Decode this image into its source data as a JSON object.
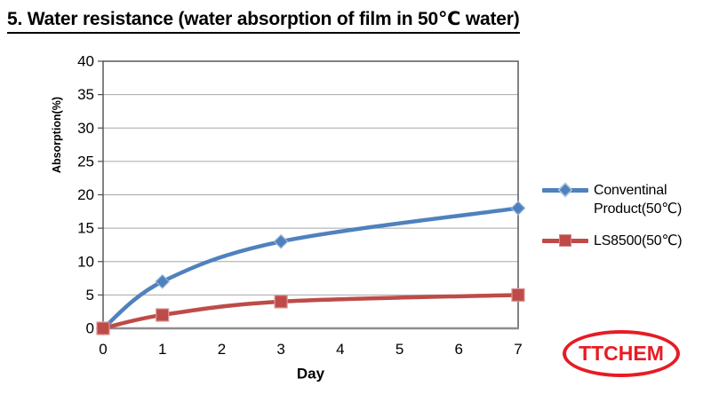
{
  "page": {
    "title": "5. Water resistance (water absorption of film in 50℃ water)"
  },
  "colors": {
    "series_blue": "#4F81BD",
    "series_red": "#BE4B48",
    "grid": "#A6A6A6",
    "plot_border": "#4D4D4D",
    "x_axis_line": "#8C8C8C",
    "tick_text": "#000000",
    "logo_red": "#E81B23"
  },
  "legend": {
    "items": [
      {
        "label": "Conventinal\nProduct(50℃)",
        "marker": "diamond"
      },
      {
        "label": "LS8500(50℃)",
        "marker": "square"
      }
    ]
  },
  "logo": {
    "text": "TTCHEM"
  },
  "chart_data": {
    "type": "line",
    "title": "",
    "xlabel": "Day",
    "ylabel": "Absorption(%)",
    "x": [
      0,
      1,
      3,
      7
    ],
    "xticks": [
      0,
      1,
      2,
      3,
      4,
      5,
      6,
      7
    ],
    "xlim": [
      0,
      7
    ],
    "ylim": [
      0,
      40
    ],
    "ytick_step": 5,
    "grid": "horizontal",
    "smoothed": true,
    "legend_position": "right",
    "series": [
      {
        "name": "Conventinal Product(50℃)",
        "values": [
          0,
          7,
          13,
          18
        ],
        "color": "#4F81BD",
        "marker": "diamond",
        "marker_edge": "#95B3D7"
      },
      {
        "name": "LS8500(50℃)",
        "values": [
          0,
          2,
          4,
          5
        ],
        "color": "#BE4B48",
        "marker": "square",
        "marker_edge": "#D99694"
      }
    ]
  }
}
